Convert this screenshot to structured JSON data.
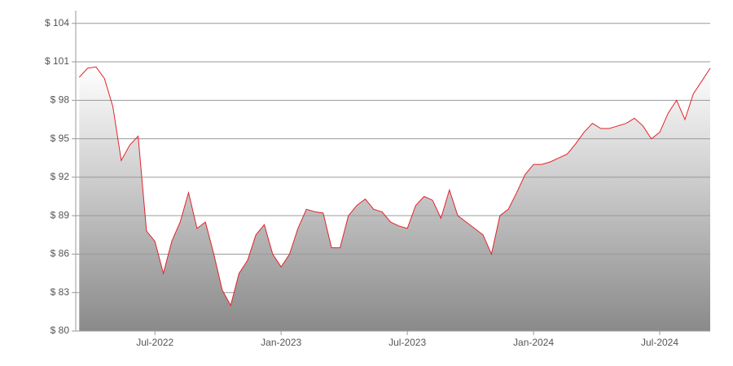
{
  "chart_data": {
    "type": "line",
    "categories": [
      null,
      null,
      null,
      null,
      null,
      null,
      null,
      null,
      null,
      "Jul-2022",
      null,
      null,
      null,
      null,
      null,
      null,
      null,
      null,
      null,
      null,
      null,
      null,
      null,
      null,
      "Jan-2023",
      null,
      null,
      null,
      null,
      null,
      null,
      null,
      null,
      null,
      null,
      null,
      null,
      null,
      null,
      "Jul-2023",
      null,
      null,
      null,
      null,
      null,
      null,
      null,
      null,
      null,
      null,
      null,
      null,
      null,
      null,
      "Jan-2024",
      null,
      null,
      null,
      null,
      null,
      null,
      null,
      null,
      null,
      null,
      null,
      null,
      null,
      null,
      "Jul-2024",
      null,
      null,
      null,
      null,
      null,
      null
    ],
    "values": [
      99.8,
      100.5,
      100.6,
      99.7,
      97.5,
      93.3,
      94.5,
      95.2,
      87.8,
      87.0,
      84.5,
      87.0,
      88.5,
      90.8,
      88.0,
      88.5,
      86.0,
      83.2,
      82.0,
      84.5,
      85.5,
      87.5,
      88.3,
      86.0,
      85.0,
      86.0,
      88.0,
      89.5,
      89.3,
      89.2,
      86.5,
      86.5,
      89.0,
      89.8,
      90.3,
      89.5,
      89.3,
      88.5,
      88.2,
      88.0,
      89.8,
      90.5,
      90.2,
      88.8,
      91.0,
      89.0,
      88.5,
      88.0,
      87.5,
      86.0,
      89.0,
      89.5,
      90.8,
      92.2,
      93.0,
      93.0,
      93.2,
      93.5,
      93.8,
      94.6,
      95.5,
      96.2,
      95.8,
      95.8,
      96.0,
      96.2,
      96.6,
      96.0,
      95.0,
      95.5,
      97.0,
      98.0,
      96.5,
      98.5,
      99.5,
      100.5
    ],
    "color": "#e3222b",
    "area": true,
    "ylim": [
      80,
      105
    ],
    "yticks": [
      {
        "value": 80,
        "label": "$ 80"
      },
      {
        "value": 83,
        "label": "$ 83"
      },
      {
        "value": 86,
        "label": "$ 86"
      },
      {
        "value": 89,
        "label": "$ 89"
      },
      {
        "value": 92,
        "label": "$ 92"
      },
      {
        "value": 95,
        "label": "$ 95"
      },
      {
        "value": 98,
        "label": "$ 98"
      },
      {
        "value": 101,
        "label": "$ 101"
      },
      {
        "value": 104,
        "label": "$ 104"
      }
    ],
    "grid": true
  }
}
